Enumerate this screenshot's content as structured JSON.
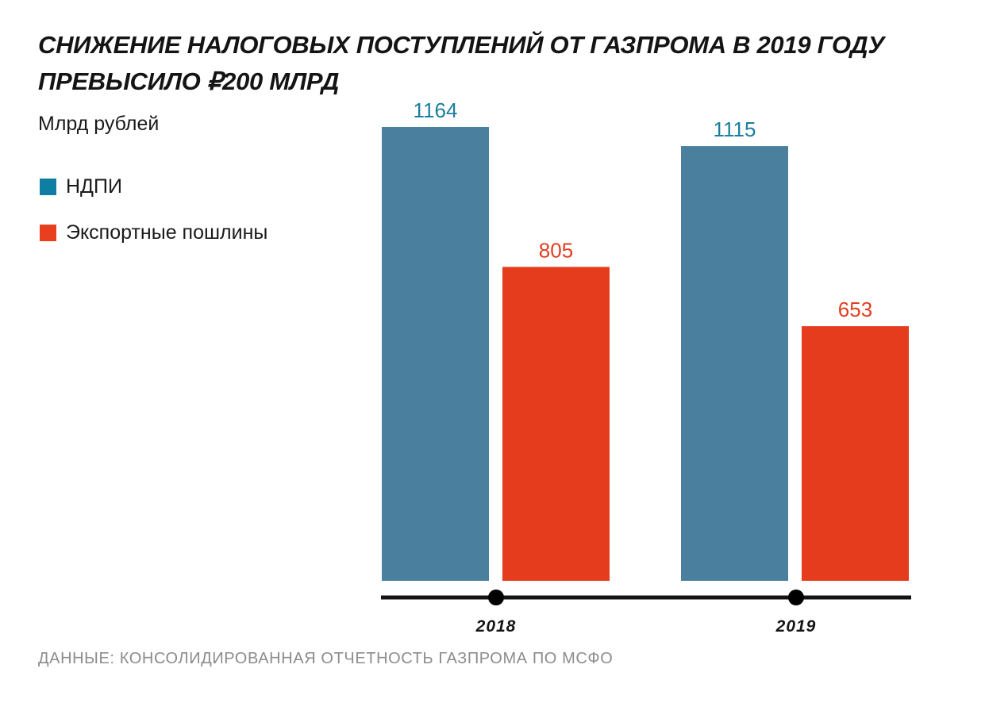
{
  "title": "СНИЖЕНИЕ НАЛОГОВЫХ ПОСТУПЛЕНИЙ ОТ ГАЗПРОМА В 2019 ГОДУ ПРЕВЫСИЛО ₽200 МЛРД",
  "units": "Млрд рублей",
  "source": "ДАННЫЕ: КОНСОЛИДИРОВАННАЯ ОТЧЕТНОСТЬ ГАЗПРОМА ПО МСФО",
  "legend": [
    {
      "label": "НДПИ",
      "color": "#0e7fa3"
    },
    {
      "label": "Экспортные пошлины",
      "color": "#e8401f"
    }
  ],
  "chart_data": {
    "type": "bar",
    "title": "СНИЖЕНИЕ НАЛОГОВЫХ ПОСТУПЛЕНИЙ ОТ ГАЗПРОМА В 2019 ГОДУ ПРЕВЫСИЛО ₽200 МЛРД",
    "ylabel": "Млрд рублей",
    "categories": [
      "2018",
      "2019"
    ],
    "series": [
      {
        "name": "НДПИ",
        "values": [
          1164,
          1115
        ],
        "color": "#4a7f9d",
        "label_color": "#1a7e9e"
      },
      {
        "name": "Экспортные пошлины",
        "values": [
          805,
          653
        ],
        "color": "#e63c1e",
        "label_color": "#e23d20"
      }
    ],
    "ylim": [
      0,
      1164
    ],
    "grid": false,
    "legend_position": "left"
  }
}
